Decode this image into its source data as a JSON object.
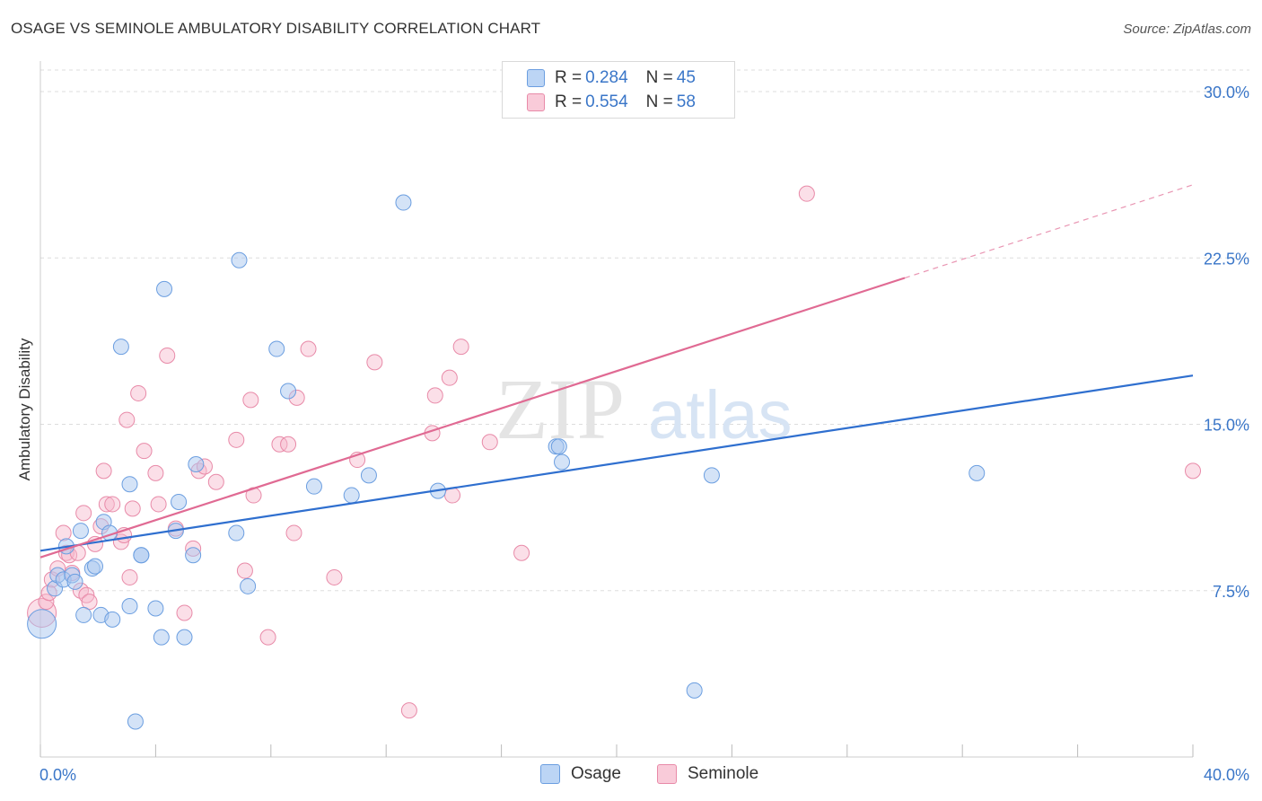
{
  "title": "OSAGE VS SEMINOLE AMBULATORY DISABILITY CORRELATION CHART",
  "source_prefix": "Source: ",
  "source_name": "ZipAtlas.com",
  "watermark_zip": "ZIP",
  "watermark_atlas": "atlas",
  "colors": {
    "osage_fill": "#a9c8f0",
    "osage_stroke": "#6b9ee0",
    "osage_line": "#2f6fcf",
    "seminole_fill": "#f6b9cc",
    "seminole_stroke": "#e88aa8",
    "seminole_line": "#e06a93",
    "axis_label": "#3a76c8",
    "grid": "#dddddd"
  },
  "legend": {
    "osage": {
      "r_label": "R = ",
      "r_value": "0.284",
      "n_label": "N = ",
      "n_value": "45"
    },
    "seminole": {
      "r_label": "R = ",
      "r_value": "0.554",
      "n_label": "N = ",
      "n_value": "58"
    }
  },
  "bottom_legend": {
    "osage": "Osage",
    "seminole": "Seminole"
  },
  "chart_data": {
    "type": "scatter",
    "title": "OSAGE VS SEMINOLE AMBULATORY DISABILITY CORRELATION CHART",
    "xlabel": "",
    "ylabel": "Ambulatory Disability",
    "xlim": [
      0,
      40
    ],
    "ylim": [
      0,
      31.5
    ],
    "x_tick_labels": [
      "0.0%",
      "40.0%"
    ],
    "y_ticks": [
      7.5,
      15.0,
      22.5,
      30.0
    ],
    "y_tick_labels": [
      "7.5%",
      "15.0%",
      "22.5%",
      "30.0%"
    ],
    "grid": true,
    "series": [
      {
        "name": "Osage",
        "r": 0.284,
        "n": 45,
        "trend": {
          "x": [
            0,
            40
          ],
          "y": [
            9.3,
            17.2
          ],
          "dashed_from": null
        },
        "points": [
          [
            0.05,
            6.0
          ],
          [
            0.5,
            7.6
          ],
          [
            0.6,
            8.2
          ],
          [
            0.8,
            8.0
          ],
          [
            0.9,
            9.5
          ],
          [
            1.1,
            8.2
          ],
          [
            1.2,
            7.9
          ],
          [
            1.4,
            10.2
          ],
          [
            1.5,
            6.4
          ],
          [
            1.8,
            8.5
          ],
          [
            1.9,
            8.6
          ],
          [
            2.1,
            6.4
          ],
          [
            2.2,
            10.6
          ],
          [
            2.4,
            10.1
          ],
          [
            2.5,
            6.2
          ],
          [
            2.8,
            18.5
          ],
          [
            3.1,
            6.8
          ],
          [
            3.1,
            12.3
          ],
          [
            3.3,
            1.6
          ],
          [
            3.5,
            9.1
          ],
          [
            3.5,
            9.1
          ],
          [
            4.0,
            6.7
          ],
          [
            4.2,
            5.4
          ],
          [
            4.3,
            21.1
          ],
          [
            4.7,
            10.2
          ],
          [
            4.8,
            11.5
          ],
          [
            5.0,
            5.4
          ],
          [
            5.3,
            9.1
          ],
          [
            5.4,
            13.2
          ],
          [
            6.8,
            10.1
          ],
          [
            6.9,
            22.4
          ],
          [
            7.2,
            7.7
          ],
          [
            8.2,
            18.4
          ],
          [
            8.6,
            16.5
          ],
          [
            9.5,
            12.2
          ],
          [
            10.8,
            11.8
          ],
          [
            11.4,
            12.7
          ],
          [
            12.6,
            25.0
          ],
          [
            13.8,
            12.0
          ],
          [
            17.9,
            14.0
          ],
          [
            18.0,
            14.0
          ],
          [
            18.1,
            13.3
          ],
          [
            22.7,
            3.0
          ],
          [
            23.3,
            12.7
          ],
          [
            32.5,
            12.8
          ]
        ]
      },
      {
        "name": "Seminole",
        "r": 0.554,
        "n": 58,
        "trend": {
          "x": [
            0,
            40
          ],
          "y": [
            9.0,
            25.8
          ],
          "dashed_from": 30
        },
        "points": [
          [
            0.05,
            6.5
          ],
          [
            0.2,
            7.0
          ],
          [
            0.3,
            7.4
          ],
          [
            0.4,
            8.0
          ],
          [
            0.6,
            8.5
          ],
          [
            0.8,
            10.1
          ],
          [
            0.9,
            9.2
          ],
          [
            1.0,
            9.1
          ],
          [
            1.1,
            8.3
          ],
          [
            1.3,
            9.2
          ],
          [
            1.4,
            7.5
          ],
          [
            1.5,
            11.0
          ],
          [
            1.6,
            7.3
          ],
          [
            1.7,
            7.0
          ],
          [
            1.9,
            9.6
          ],
          [
            2.1,
            10.4
          ],
          [
            2.2,
            12.9
          ],
          [
            2.3,
            11.4
          ],
          [
            2.5,
            11.4
          ],
          [
            2.8,
            9.7
          ],
          [
            2.9,
            10.0
          ],
          [
            3.0,
            15.2
          ],
          [
            3.1,
            8.1
          ],
          [
            3.2,
            11.2
          ],
          [
            3.4,
            16.4
          ],
          [
            3.6,
            13.8
          ],
          [
            4.0,
            12.8
          ],
          [
            4.1,
            11.4
          ],
          [
            4.4,
            18.1
          ],
          [
            4.7,
            10.3
          ],
          [
            5.0,
            6.5
          ],
          [
            5.3,
            9.4
          ],
          [
            5.5,
            12.9
          ],
          [
            5.7,
            13.1
          ],
          [
            6.1,
            12.4
          ],
          [
            6.8,
            14.3
          ],
          [
            7.1,
            8.4
          ],
          [
            7.3,
            16.1
          ],
          [
            7.4,
            11.8
          ],
          [
            7.9,
            5.4
          ],
          [
            8.3,
            14.1
          ],
          [
            8.6,
            14.1
          ],
          [
            8.8,
            10.1
          ],
          [
            8.9,
            16.2
          ],
          [
            9.3,
            18.4
          ],
          [
            10.2,
            8.1
          ],
          [
            11.0,
            13.4
          ],
          [
            11.6,
            17.8
          ],
          [
            12.8,
            2.1
          ],
          [
            13.6,
            14.6
          ],
          [
            13.7,
            16.3
          ],
          [
            14.2,
            17.1
          ],
          [
            14.3,
            11.8
          ],
          [
            14.6,
            18.5
          ],
          [
            15.6,
            14.2
          ],
          [
            16.7,
            9.2
          ],
          [
            26.6,
            25.4
          ],
          [
            40.0,
            12.9
          ]
        ]
      }
    ]
  }
}
